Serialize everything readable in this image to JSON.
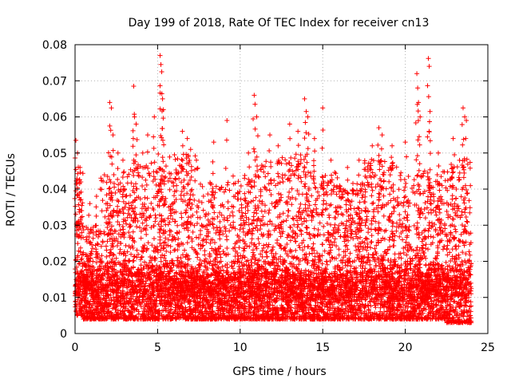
{
  "chart_data": {
    "type": "scatter",
    "title": "Day 199 of 2018, Rate Of TEC Index for receiver cn13",
    "xlabel": "GPS time / hours",
    "ylabel": "ROTI / TECUs",
    "xlim": [
      0,
      25
    ],
    "ylim": [
      0,
      0.08
    ],
    "x_ticks": [
      0,
      5,
      10,
      15,
      20,
      25
    ],
    "x_tick_labels": [
      "0",
      "5",
      "10",
      "15",
      "20",
      "25"
    ],
    "y_ticks": [
      0,
      0.01,
      0.02,
      0.03,
      0.04,
      0.05,
      0.06,
      0.07,
      0.08
    ],
    "y_tick_labels": [
      "0",
      "0.01",
      "0.02",
      "0.03",
      "0.04",
      "0.05",
      "0.06",
      "0.07",
      "0.08"
    ],
    "grid": true,
    "marker": "plus",
    "color": "#ff0000",
    "series": [
      {
        "values_by_hour": {
          "x_start": 0,
          "x_end": 24,
          "bands": [
            {
              "x": [
                0.0,
                0.5
              ],
              "y_min": 0.005,
              "y_max": 0.045,
              "peaks": [
                [
                  0.05,
                  0.0535
                ],
                [
                  0.15,
                  0.05
                ],
                [
                  0.3,
                  0.046
                ],
                [
                  0.35,
                  0.042
                ]
              ]
            },
            {
              "x": [
                0.5,
                1.5
              ],
              "y_min": 0.004,
              "y_max": 0.03,
              "peaks": [
                [
                  0.9,
                  0.036
                ],
                [
                  1.3,
                  0.038
                ]
              ]
            },
            {
              "x": [
                1.5,
                3.0
              ],
              "y_min": 0.004,
              "y_max": 0.045,
              "peaks": [
                [
                  2.1,
                  0.064
                ],
                [
                  2.2,
                  0.0625
                ],
                [
                  2.3,
                  0.055
                ],
                [
                  2.6,
                  0.05
                ],
                [
                  2.9,
                  0.048
                ]
              ]
            },
            {
              "x": [
                3.0,
                4.5
              ],
              "y_min": 0.004,
              "y_max": 0.048,
              "peaks": [
                [
                  3.55,
                  0.0685
                ],
                [
                  3.6,
                  0.06
                ],
                [
                  3.7,
                  0.058
                ],
                [
                  4.1,
                  0.05
                ],
                [
                  4.4,
                  0.055
                ]
              ]
            },
            {
              "x": [
                4.5,
                5.5
              ],
              "y_min": 0.004,
              "y_max": 0.05,
              "peaks": [
                [
                  4.8,
                  0.06
                ],
                [
                  5.15,
                  0.077
                ],
                [
                  5.2,
                  0.0745
                ],
                [
                  5.25,
                  0.0725
                ],
                [
                  5.3,
                  0.065
                ],
                [
                  5.35,
                  0.062
                ]
              ]
            },
            {
              "x": [
                5.5,
                7.5
              ],
              "y_min": 0.004,
              "y_max": 0.05,
              "peaks": [
                [
                  6.5,
                  0.056
                ],
                [
                  6.8,
                  0.054
                ],
                [
                  7.0,
                  0.051
                ]
              ]
            },
            {
              "x": [
                7.5,
                9.5
              ],
              "y_min": 0.004,
              "y_max": 0.042,
              "peaks": [
                [
                  8.4,
                  0.053
                ],
                [
                  9.2,
                  0.059
                ]
              ]
            },
            {
              "x": [
                9.5,
                11.0
              ],
              "y_min": 0.004,
              "y_max": 0.045,
              "peaks": [
                [
                  10.5,
                  0.05
                ],
                [
                  10.85,
                  0.066
                ],
                [
                  10.9,
                  0.0635
                ],
                [
                  11.0,
                  0.06
                ]
              ]
            },
            {
              "x": [
                11.0,
                12.5
              ],
              "y_min": 0.004,
              "y_max": 0.048,
              "peaks": [
                [
                  11.8,
                  0.055
                ],
                [
                  12.3,
                  0.052
                ]
              ]
            },
            {
              "x": [
                12.5,
                14.5
              ],
              "y_min": 0.004,
              "y_max": 0.05,
              "peaks": [
                [
                  13.0,
                  0.058
                ],
                [
                  13.5,
                  0.056
                ],
                [
                  13.9,
                  0.065
                ],
                [
                  14.0,
                  0.0615
                ],
                [
                  14.1,
                  0.06
                ],
                [
                  14.5,
                  0.054
                ]
              ]
            },
            {
              "x": [
                14.5,
                16.0
              ],
              "y_min": 0.004,
              "y_max": 0.045,
              "peaks": [
                [
                  15.0,
                  0.0625
                ],
                [
                  15.5,
                  0.048
                ]
              ]
            },
            {
              "x": [
                16.0,
                17.5
              ],
              "y_min": 0.004,
              "y_max": 0.042,
              "peaks": [
                [
                  16.5,
                  0.046
                ],
                [
                  17.2,
                  0.048
                ]
              ]
            },
            {
              "x": [
                17.5,
                19.5
              ],
              "y_min": 0.004,
              "y_max": 0.048,
              "peaks": [
                [
                  18.0,
                  0.052
                ],
                [
                  18.4,
                  0.057
                ],
                [
                  18.6,
                  0.055
                ],
                [
                  19.2,
                  0.052
                ]
              ]
            },
            {
              "x": [
                19.5,
                21.0
              ],
              "y_min": 0.004,
              "y_max": 0.045,
              "peaks": [
                [
                  20.0,
                  0.053
                ],
                [
                  20.7,
                  0.072
                ],
                [
                  20.75,
                  0.068
                ],
                [
                  20.8,
                  0.064
                ],
                [
                  20.9,
                  0.06
                ]
              ]
            },
            {
              "x": [
                21.0,
                22.5
              ],
              "y_min": 0.004,
              "y_max": 0.045,
              "peaks": [
                [
                  21.4,
                  0.0762
                ],
                [
                  21.45,
                  0.074
                ],
                [
                  21.5,
                  0.0615
                ],
                [
                  22.0,
                  0.05
                ]
              ]
            },
            {
              "x": [
                22.5,
                24.0
              ],
              "y_min": 0.003,
              "y_max": 0.048,
              "peaks": [
                [
                  22.9,
                  0.054
                ],
                [
                  23.5,
                  0.0625
                ],
                [
                  23.6,
                  0.06
                ],
                [
                  23.7,
                  0.059
                ]
              ]
            }
          ],
          "baseline": {
            "y_min": 0.004,
            "y_mean": 0.011,
            "y_max": 0.02
          }
        }
      }
    ]
  }
}
